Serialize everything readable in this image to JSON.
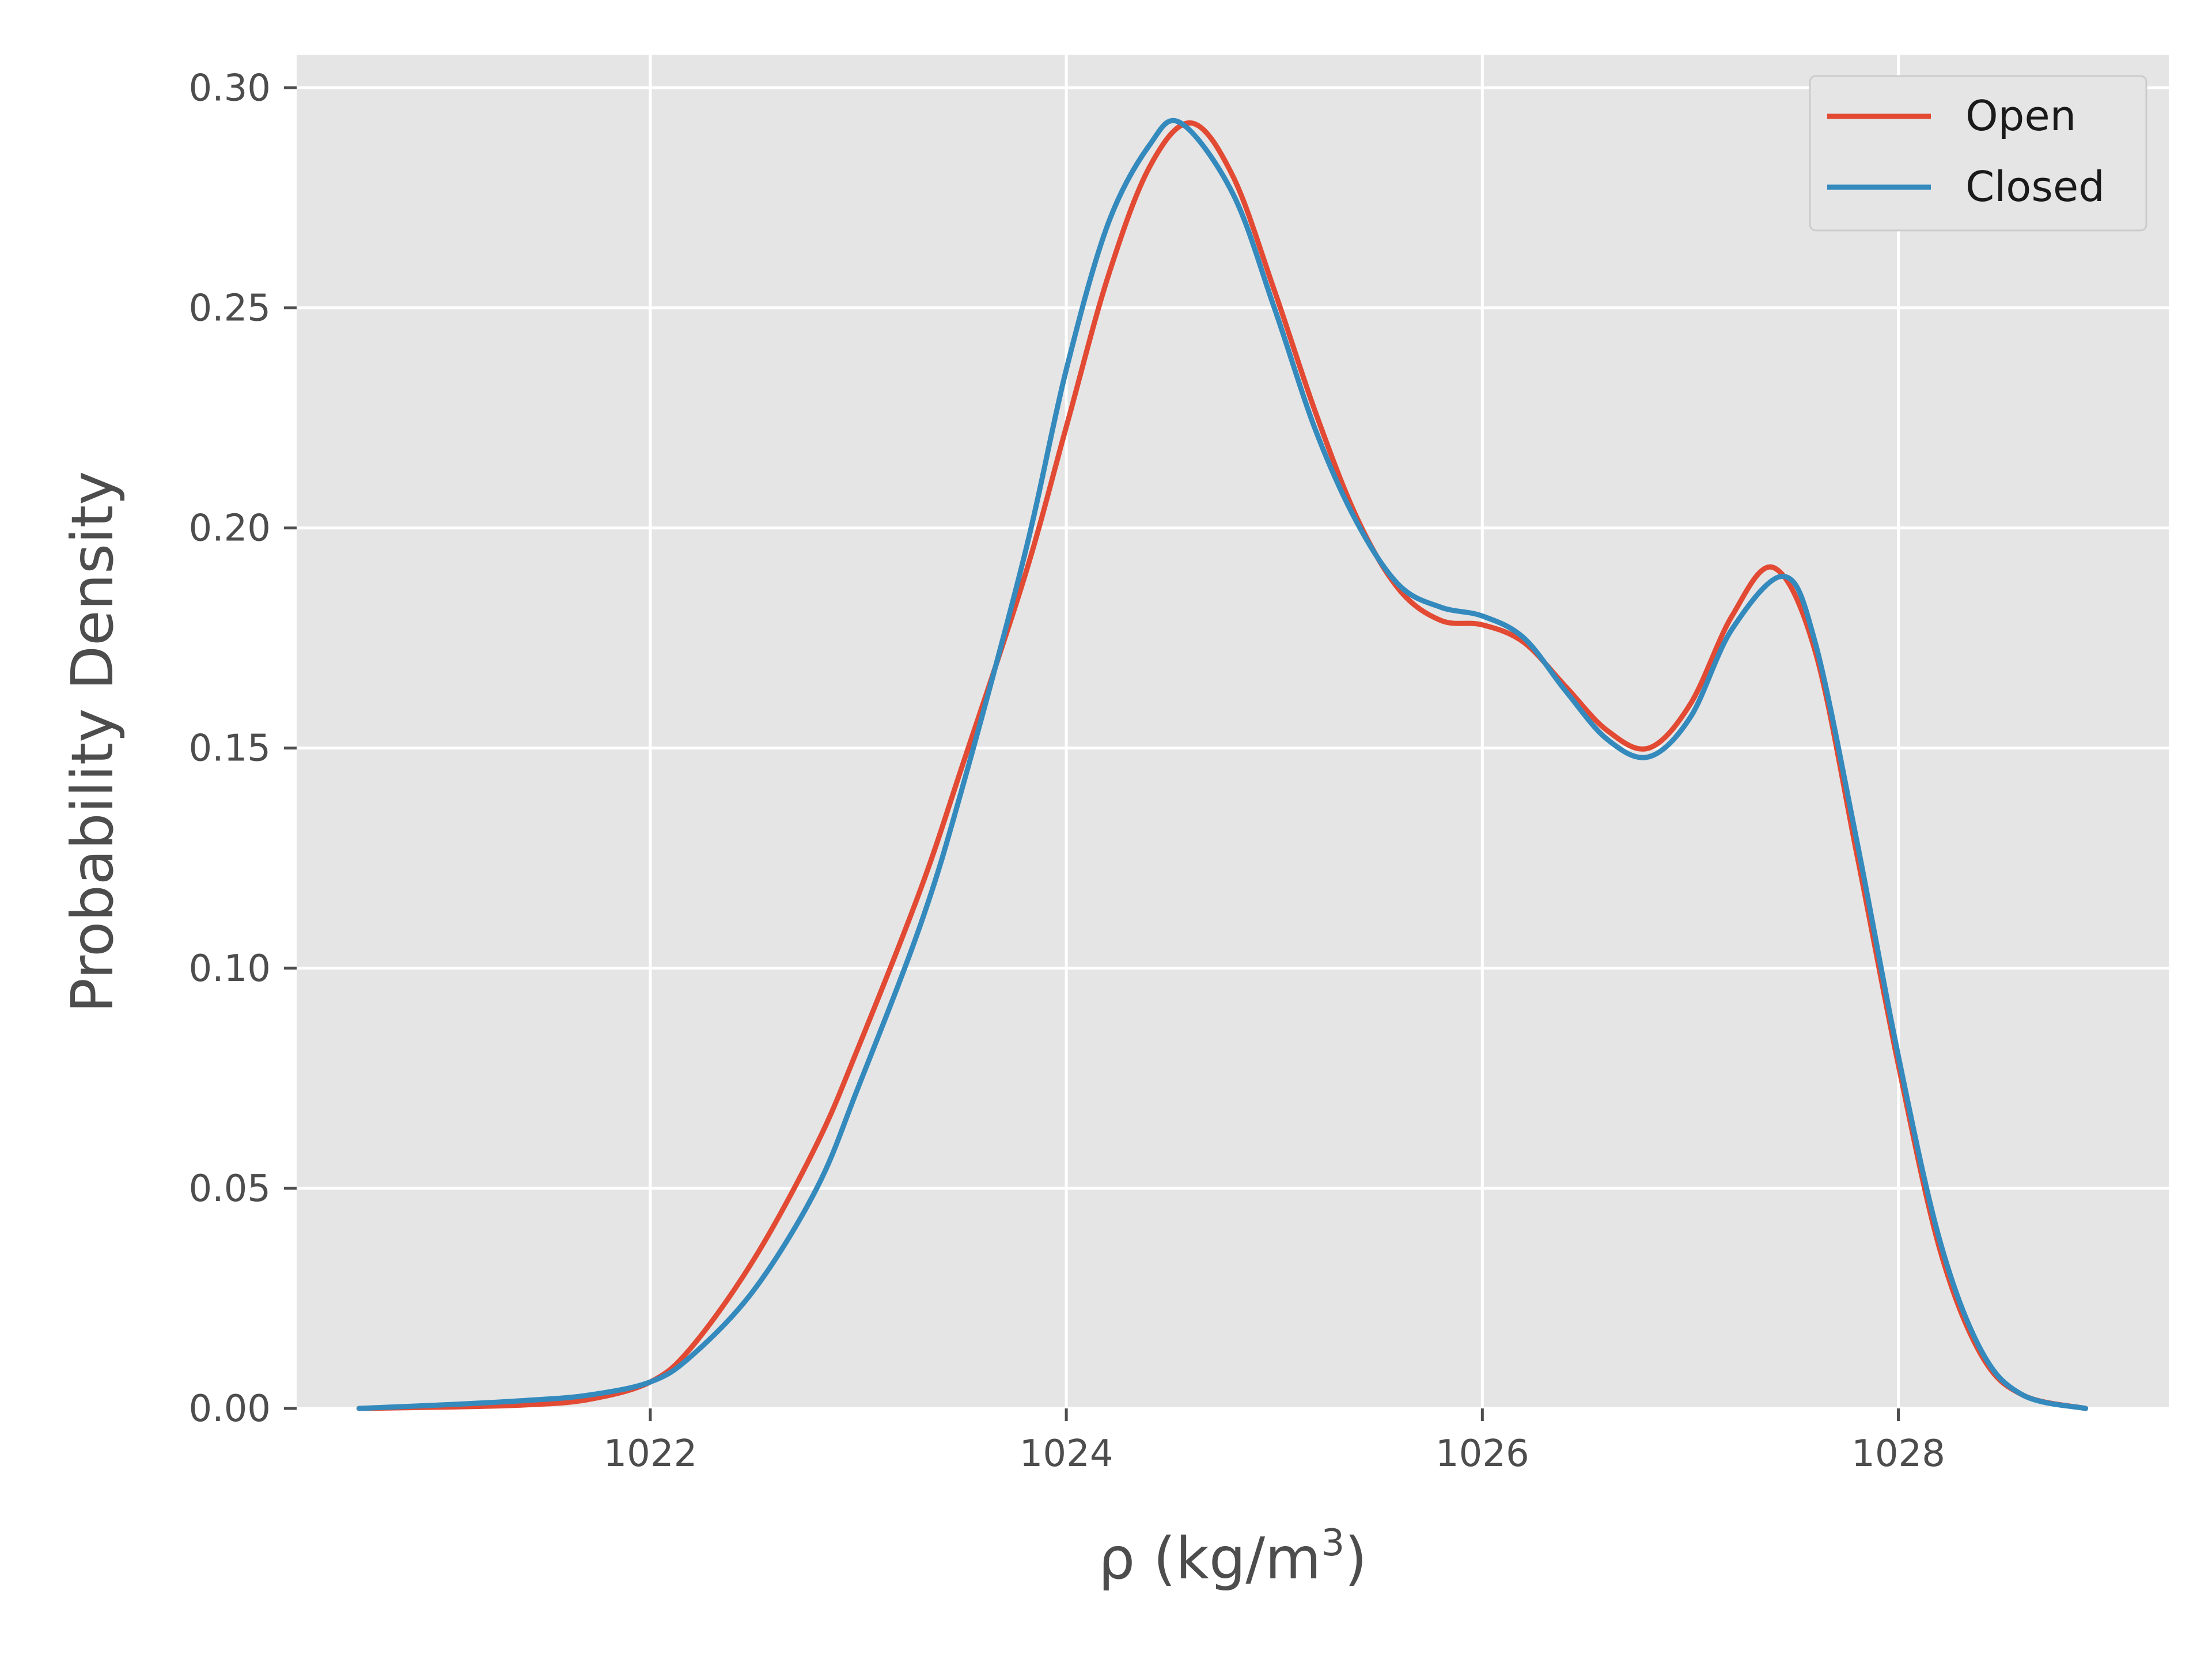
{
  "chart_data": {
    "type": "line",
    "xlabel_main": "ρ (kg/m",
    "xlabel_sup": "3",
    "xlabel_close": ")",
    "ylabel": "Probability Density",
    "xlim": [
      1020.3,
      1029.3
    ],
    "ylim": [
      0.0,
      0.3075
    ],
    "xticks": [
      1022,
      1024,
      1026,
      1028
    ],
    "xtick_labels": [
      "1022",
      "1024",
      "1026",
      "1028"
    ],
    "yticks": [
      0.0,
      0.05,
      0.1,
      0.15,
      0.2,
      0.25,
      0.3
    ],
    "ytick_labels": [
      "0.00",
      "0.05",
      "0.10",
      "0.15",
      "0.20",
      "0.25",
      "0.30"
    ],
    "grid": true,
    "legend_position": "top-right",
    "series": [
      {
        "name": "Open",
        "color": "#e24a33",
        "x": [
          1020.6,
          1021.0,
          1021.4,
          1021.7,
          1022.0,
          1022.2,
          1022.5,
          1022.8,
          1023.0,
          1023.3,
          1023.5,
          1023.8,
          1024.0,
          1024.2,
          1024.4,
          1024.6,
          1024.8,
          1025.0,
          1025.2,
          1025.4,
          1025.6,
          1025.8,
          1026.0,
          1026.2,
          1026.4,
          1026.6,
          1026.8,
          1027.0,
          1027.2,
          1027.4,
          1027.6,
          1027.8,
          1028.0,
          1028.2,
          1028.4,
          1028.6,
          1028.9
        ],
        "y": [
          0.0,
          0.0003,
          0.0008,
          0.002,
          0.006,
          0.014,
          0.034,
          0.06,
          0.082,
          0.118,
          0.146,
          0.189,
          0.223,
          0.257,
          0.282,
          0.292,
          0.28,
          0.254,
          0.226,
          0.202,
          0.186,
          0.179,
          0.178,
          0.174,
          0.164,
          0.154,
          0.15,
          0.16,
          0.18,
          0.191,
          0.172,
          0.126,
          0.078,
          0.036,
          0.012,
          0.003,
          0.0
        ]
      },
      {
        "name": "Closed",
        "color": "#348abd",
        "x": [
          1020.6,
          1021.0,
          1021.4,
          1021.7,
          1022.0,
          1022.2,
          1022.5,
          1022.8,
          1023.0,
          1023.3,
          1023.5,
          1023.8,
          1024.0,
          1024.2,
          1024.4,
          1024.55,
          1024.8,
          1025.0,
          1025.2,
          1025.4,
          1025.6,
          1025.8,
          1026.0,
          1026.2,
          1026.4,
          1026.6,
          1026.8,
          1027.0,
          1027.2,
          1027.45,
          1027.6,
          1027.8,
          1028.0,
          1028.2,
          1028.4,
          1028.6,
          1028.9
        ],
        "y": [
          0.0,
          0.0008,
          0.0018,
          0.003,
          0.006,
          0.012,
          0.027,
          0.05,
          0.073,
          0.11,
          0.141,
          0.194,
          0.236,
          0.269,
          0.287,
          0.292,
          0.276,
          0.25,
          0.222,
          0.201,
          0.187,
          0.182,
          0.18,
          0.175,
          0.163,
          0.152,
          0.148,
          0.157,
          0.177,
          0.189,
          0.174,
          0.129,
          0.08,
          0.038,
          0.013,
          0.003,
          0.0
        ]
      }
    ]
  }
}
